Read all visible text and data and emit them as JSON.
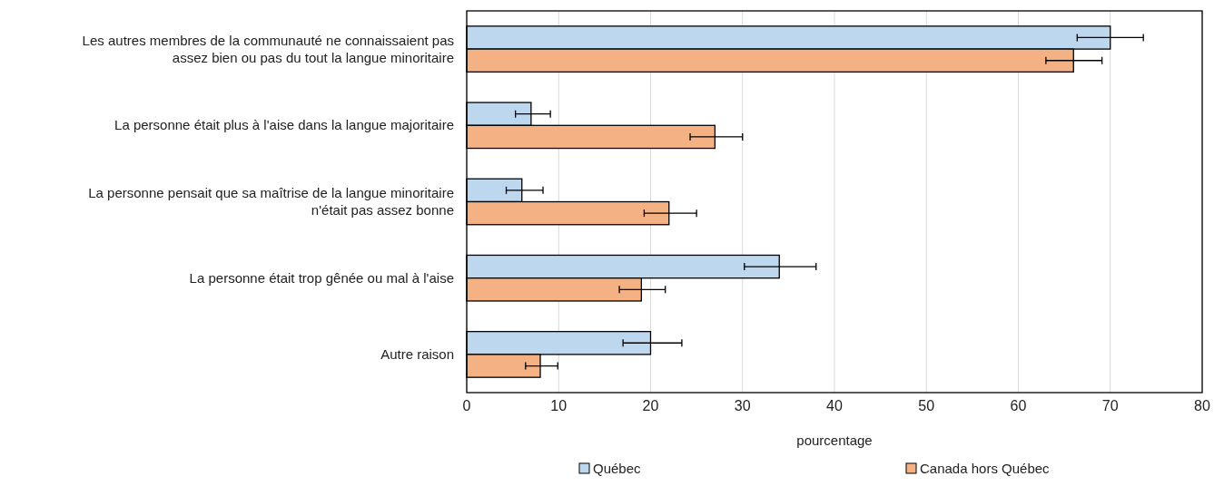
{
  "chart_data": {
    "type": "bar",
    "orientation": "horizontal",
    "xlabel": "pourcentage",
    "categories": [
      "Les autres membres de la communauté ne connaissaient pas assez bien ou pas du tout la langue minoritaire",
      "La personne était plus à l'aise dans la langue majoritaire",
      "La personne pensait que sa maîtrise de la langue minoritaire n'était pas assez bonne",
      "La personne était trop gênée ou mal à l'aise",
      "Autre raison"
    ],
    "series": [
      {
        "name": "Québec",
        "color": "#bdd7ee",
        "values": [
          70,
          7,
          6,
          34,
          20
        ],
        "errors": [
          [
            66.4,
            73.6
          ],
          [
            5.3,
            9.1
          ],
          [
            4.3,
            8.3
          ],
          [
            30.2,
            38.0
          ],
          [
            17.0,
            23.4
          ]
        ]
      },
      {
        "name": "Canada hors Québec",
        "color": "#f4b183",
        "values": [
          66,
          27,
          22,
          19,
          8
        ],
        "errors": [
          [
            63.0,
            69.1
          ],
          [
            24.3,
            30.0
          ],
          [
            19.3,
            25.0
          ],
          [
            16.6,
            21.6
          ],
          [
            6.4,
            9.9
          ]
        ]
      }
    ],
    "xlim": [
      0,
      80
    ],
    "xticks": [
      0,
      10,
      20,
      30,
      40,
      50,
      60,
      70,
      80
    ],
    "grid": "x",
    "legend": "bottom"
  }
}
